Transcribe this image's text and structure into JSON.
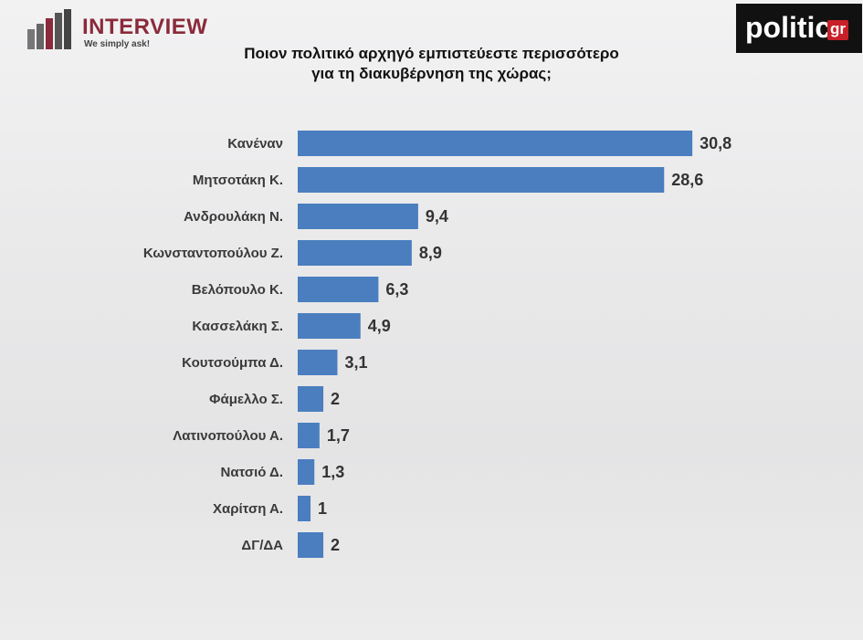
{
  "branding": {
    "interview": "INTERVIEW",
    "tagline": "We simply ask!",
    "politic": "politic",
    "gr": "gr"
  },
  "chart_data": {
    "type": "hbar",
    "title": "Ποιον πολιτικό αρχηγό εμπιστεύεστε περισσότερο\nγια τη διακυβέρνηση της χώρας;",
    "categories": [
      "Κανέναν",
      "Μητσοτάκη Κ.",
      "Ανδρουλάκη Ν.",
      "Κωνσταντοπούλου Ζ.",
      "Βελόπουλο Κ.",
      "Κασσελάκη Σ.",
      "Κουτσούμπα Δ.",
      "Φάμελλο Σ.",
      "Λατινοπούλου Α.",
      "Νατσιό Δ.",
      "Χαρίτση Α.",
      "ΔΓ/ΔΑ"
    ],
    "values": [
      30.8,
      28.6,
      9.4,
      8.9,
      6.3,
      4.9,
      3.1,
      2,
      1.7,
      1.3,
      1,
      2
    ],
    "value_labels": [
      "30,8",
      "28,6",
      "9,4",
      "8,9",
      "6,3",
      "4,9",
      "3,1",
      "2",
      "1,7",
      "1,3",
      "1",
      "2"
    ],
    "color": "#4a7ebf"
  }
}
